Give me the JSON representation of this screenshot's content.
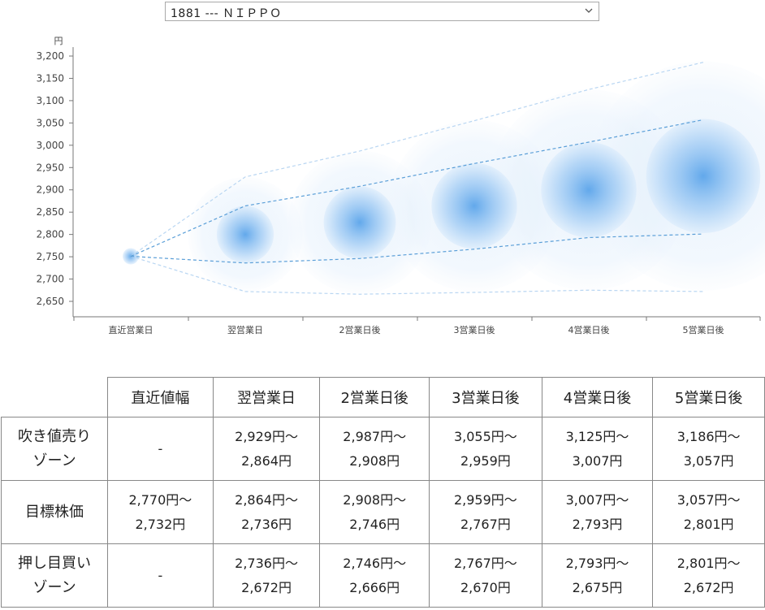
{
  "selector": {
    "value": "1881 --- ＮＩＰＰＯ"
  },
  "chart_data": {
    "type": "scatter",
    "ylabel": "円",
    "ylim": [
      2625,
      3235
    ],
    "yticks": [
      "2,650",
      "2,700",
      "2,750",
      "2,800",
      "2,850",
      "2,900",
      "2,950",
      "3,000",
      "3,050",
      "3,100",
      "3,150",
      "3,200"
    ],
    "ytick_values": [
      2650,
      2700,
      2750,
      2800,
      2850,
      2900,
      2950,
      3000,
      3050,
      3100,
      3150,
      3200
    ],
    "categories": [
      "直近営業日",
      "翌営業日",
      "2営業日後",
      "3営業日後",
      "4営業日後",
      "5営業日後"
    ],
    "center_line": [
      2751,
      2800,
      2827,
      2864,
      2900,
      2931
    ],
    "inner_band_upper": [
      2751,
      2864,
      2908,
      2959,
      3007,
      3057
    ],
    "inner_band_lower": [
      2751,
      2736,
      2746,
      2767,
      2793,
      2801
    ],
    "outer_band_upper": [
      2751,
      2929,
      2987,
      3055,
      3125,
      3186
    ],
    "outer_band_lower": [
      2751,
      2672,
      2666,
      2670,
      2675,
      2672
    ],
    "accent_color": "#4a9be8",
    "grid": false
  },
  "table": {
    "headers": [
      "直近値幅",
      "翌営業日",
      "2営業日後",
      "3営業日後",
      "4営業日後",
      "5営業日後"
    ],
    "rows": [
      {
        "label": [
          "吹き値売り",
          "ゾーン"
        ],
        "cells": [
          [
            "-"
          ],
          [
            "2,929円～",
            "2,864円"
          ],
          [
            "2,987円～",
            "2,908円"
          ],
          [
            "3,055円～",
            "2,959円"
          ],
          [
            "3,125円～",
            "3,007円"
          ],
          [
            "3,186円～",
            "3,057円"
          ]
        ]
      },
      {
        "label": [
          "目標株価"
        ],
        "cells": [
          [
            "2,770円～",
            "2,732円"
          ],
          [
            "2,864円～",
            "2,736円"
          ],
          [
            "2,908円～",
            "2,746円"
          ],
          [
            "2,959円～",
            "2,767円"
          ],
          [
            "3,007円～",
            "2,793円"
          ],
          [
            "3,057円～",
            "2,801円"
          ]
        ]
      },
      {
        "label": [
          "押し目買い",
          "ゾーン"
        ],
        "cells": [
          [
            "-"
          ],
          [
            "2,736円～",
            "2,672円"
          ],
          [
            "2,746円～",
            "2,666円"
          ],
          [
            "2,767円～",
            "2,670円"
          ],
          [
            "2,793円～",
            "2,675円"
          ],
          [
            "2,801円～",
            "2,672円"
          ]
        ]
      }
    ]
  }
}
